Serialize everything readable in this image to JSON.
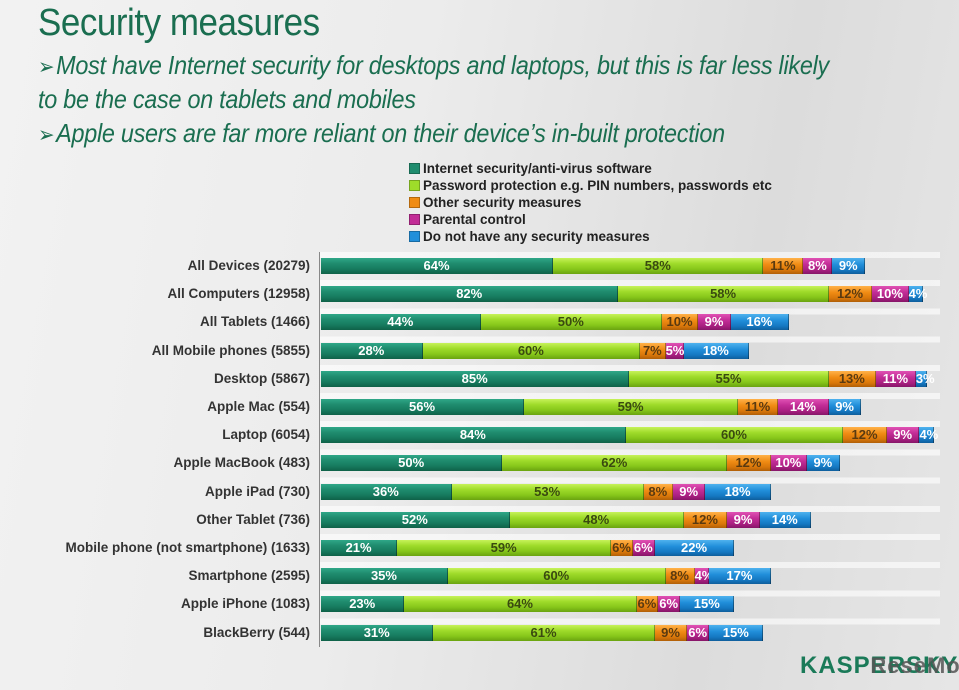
{
  "chart_data": {
    "type": "bar",
    "orientation": "horizontal",
    "stacked": true,
    "title": "Security measures",
    "bullets": [
      "Most have Internet security for desktops and laptops, but this is far less likely",
      "to be the case on tablets and mobiles",
      "Apple users are far more reliant on their device’s in-built protection"
    ],
    "bullet_arrow": "➢",
    "xlabel": "",
    "ylabel": "",
    "legend_position": "top",
    "categories": [
      "All Devices (20279)",
      "All Computers (12958)",
      "All Tablets (1466)",
      "All Mobile phones (5855)",
      "Desktop (5867)",
      "Apple Mac (554)",
      "Laptop (6054)",
      "Apple MacBook (483)",
      "Apple iPad (730)",
      "Other Tablet  (736)",
      "Mobile phone (not smartphone) (1633)",
      "Smartphone (2595)",
      "Apple iPhone (1083)",
      "BlackBerry (544)"
    ],
    "series": [
      {
        "name": "Internet security/anti-virus software",
        "color": "#1f8c6e",
        "values": [
          64,
          82,
          44,
          28,
          85,
          56,
          84,
          50,
          36,
          52,
          21,
          35,
          23,
          31
        ]
      },
      {
        "name": "Password protection e.g. PIN numbers, passwords etc",
        "color": "#9fdc2a",
        "values": [
          58,
          58,
          50,
          60,
          55,
          59,
          60,
          62,
          53,
          48,
          59,
          60,
          64,
          61
        ]
      },
      {
        "name": "Other security measures",
        "color": "#f08c14",
        "values": [
          11,
          12,
          10,
          7,
          13,
          11,
          12,
          12,
          8,
          12,
          6,
          8,
          6,
          9
        ]
      },
      {
        "name": "Parental control",
        "color": "#c22c96",
        "values": [
          8,
          10,
          9,
          5,
          11,
          14,
          9,
          10,
          9,
          9,
          6,
          4,
          6,
          6
        ]
      },
      {
        "name": "Do not have any security measures",
        "color": "#218fda",
        "values": [
          9,
          4,
          16,
          18,
          3,
          9,
          4,
          9,
          18,
          14,
          22,
          17,
          15,
          15
        ]
      }
    ],
    "value_suffix": "%",
    "grid": false
  },
  "logo": {
    "text": "KASPERSKY",
    "watermark": "ReseMom"
  }
}
